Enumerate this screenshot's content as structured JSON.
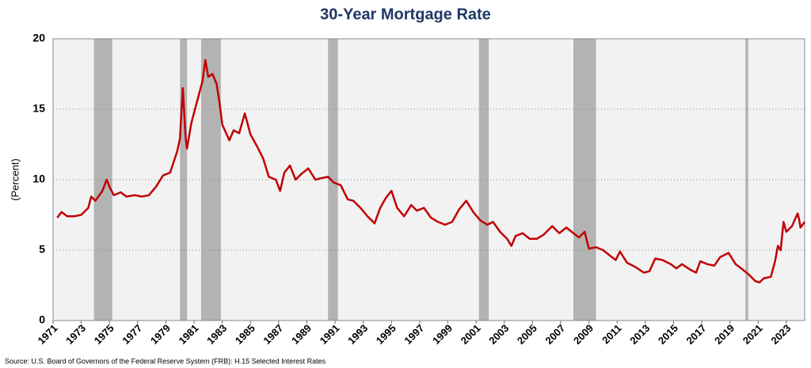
{
  "chart_data": {
    "type": "line",
    "title": "30-Year Mortgage Rate",
    "y_label": "(Percent)",
    "source": "Source: U.S. Board of Governors of the Federal Reserve System (FRB): H.15 Selected Interest Rates",
    "color": "#c00000",
    "recession_color": "#b3b3b3",
    "grid": true,
    "xlim": [
      1971,
      2024.3
    ],
    "ylim": [
      0,
      20
    ],
    "xticks": [
      1971,
      1973,
      1975,
      1977,
      1979,
      1981,
      1983,
      1985,
      1987,
      1989,
      1991,
      1993,
      1995,
      1997,
      1999,
      2001,
      2003,
      2005,
      2007,
      2009,
      2011,
      2013,
      2015,
      2017,
      2019,
      2021,
      2023
    ],
    "yticks": [
      0,
      5,
      10,
      15,
      20
    ],
    "recessions": [
      [
        1973.9,
        1975.2
      ],
      [
        1980.0,
        1980.5
      ],
      [
        1981.5,
        1982.9
      ],
      [
        1990.5,
        1991.2
      ],
      [
        2001.2,
        2001.9
      ],
      [
        2007.9,
        2009.5
      ],
      [
        2020.1,
        2020.3
      ]
    ],
    "x": [
      1971.3,
      1971.6,
      1972.0,
      1972.5,
      1973.0,
      1973.5,
      1973.7,
      1974.0,
      1974.5,
      1974.8,
      1975.0,
      1975.3,
      1975.8,
      1976.2,
      1976.8,
      1977.3,
      1977.8,
      1978.3,
      1978.8,
      1979.3,
      1979.8,
      1980.0,
      1980.2,
      1980.4,
      1980.5,
      1980.8,
      1981.2,
      1981.6,
      1981.8,
      1982.0,
      1982.3,
      1982.6,
      1982.8,
      1983.0,
      1983.5,
      1983.8,
      1984.2,
      1984.6,
      1985.0,
      1985.5,
      1985.9,
      1986.3,
      1986.8,
      1987.1,
      1987.4,
      1987.8,
      1988.2,
      1988.6,
      1989.1,
      1989.6,
      1990.0,
      1990.5,
      1990.9,
      1991.4,
      1991.9,
      1992.3,
      1992.8,
      1993.3,
      1993.8,
      1994.2,
      1994.6,
      1995.0,
      1995.4,
      1995.9,
      1996.4,
      1996.8,
      1997.3,
      1997.8,
      1998.3,
      1998.8,
      1999.3,
      1999.8,
      2000.3,
      2000.8,
      2001.3,
      2001.8,
      2002.2,
      2002.7,
      2003.2,
      2003.5,
      2003.8,
      2004.3,
      2004.8,
      2005.3,
      2005.8,
      2006.4,
      2006.9,
      2007.4,
      2007.9,
      2008.3,
      2008.7,
      2009.0,
      2009.5,
      2010.0,
      2010.5,
      2010.9,
      2011.2,
      2011.7,
      2012.3,
      2012.9,
      2013.3,
      2013.7,
      2014.2,
      2014.8,
      2015.2,
      2015.6,
      2016.2,
      2016.6,
      2016.9,
      2017.4,
      2017.9,
      2018.3,
      2018.9,
      2019.4,
      2019.8,
      2020.3,
      2020.8,
      2021.1,
      2021.4,
      2021.9,
      2022.2,
      2022.4,
      2022.6,
      2022.8,
      2023.0,
      2023.4,
      2023.8,
      2023.9,
      2024.0,
      2024.3
    ],
    "values": [
      7.3,
      7.7,
      7.4,
      7.4,
      7.5,
      8.0,
      8.8,
      8.5,
      9.2,
      10.0,
      9.5,
      8.9,
      9.1,
      8.8,
      8.9,
      8.8,
      8.9,
      9.5,
      10.3,
      10.5,
      12.0,
      12.9,
      16.5,
      13.0,
      12.2,
      14.0,
      15.5,
      17.0,
      18.5,
      17.3,
      17.5,
      16.8,
      15.5,
      13.9,
      12.8,
      13.5,
      13.3,
      14.7,
      13.2,
      12.3,
      11.5,
      10.2,
      10.0,
      9.2,
      10.5,
      11.0,
      10.0,
      10.4,
      10.8,
      10.0,
      10.1,
      10.2,
      9.8,
      9.6,
      8.6,
      8.5,
      8.0,
      7.4,
      6.9,
      8.0,
      8.7,
      9.2,
      8.0,
      7.4,
      8.2,
      7.8,
      8.0,
      7.3,
      7.0,
      6.8,
      7.0,
      7.9,
      8.5,
      7.7,
      7.1,
      6.8,
      7.0,
      6.3,
      5.8,
      5.3,
      6.0,
      6.2,
      5.8,
      5.8,
      6.1,
      6.7,
      6.2,
      6.6,
      6.2,
      5.9,
      6.3,
      5.1,
      5.2,
      5.0,
      4.6,
      4.3,
      4.9,
      4.1,
      3.8,
      3.4,
      3.5,
      4.4,
      4.3,
      4.0,
      3.7,
      4.0,
      3.6,
      3.4,
      4.2,
      4.0,
      3.9,
      4.5,
      4.8,
      4.0,
      3.7,
      3.3,
      2.8,
      2.7,
      3.0,
      3.1,
      4.2,
      5.3,
      5.0,
      7.0,
      6.3,
      6.7,
      7.6,
      7.2,
      6.6,
      7.0
    ]
  }
}
